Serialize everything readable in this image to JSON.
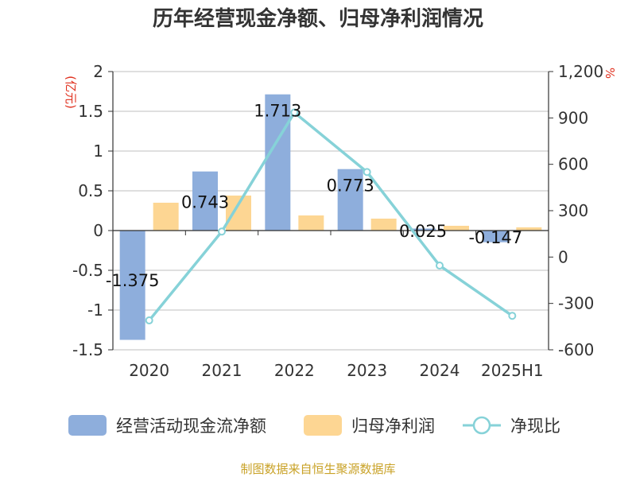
{
  "chart_data": {
    "type": "bar",
    "title": "历年经营现金净额、归母净利润情况",
    "categories": [
      "2020",
      "2021",
      "2022",
      "2023",
      "2024",
      "2025H1"
    ],
    "left_axis": {
      "unit": "(亿元)",
      "ylim": [
        -1.5,
        2
      ],
      "ticks": [
        2,
        1.5,
        1,
        0.5,
        0,
        -0.5,
        -1,
        -1.5
      ],
      "tick_labels": [
        "2",
        "1.5",
        "1",
        "0.5",
        "0",
        "-0.5",
        "-1",
        "-1.5"
      ]
    },
    "right_axis": {
      "unit": "%",
      "ylim": [
        -600,
        1200
      ],
      "ticks": [
        1200,
        900,
        600,
        300,
        0,
        -300,
        -600
      ],
      "tick_labels": [
        "1,200",
        "900",
        "600",
        "300",
        "0",
        "-300",
        "-600"
      ]
    },
    "series": [
      {
        "name": "经营活动现金流净额",
        "type": "bar",
        "axis": "left",
        "color": "#8eaedc",
        "values": [
          -1.375,
          0.743,
          1.713,
          0.773,
          0.025,
          -0.147
        ],
        "labels": [
          "-1.375",
          "0.743",
          "1.713",
          "0.773",
          "0.025",
          "-0.147"
        ]
      },
      {
        "name": "归母净利润",
        "type": "bar",
        "axis": "left",
        "color": "#fdd693",
        "values": [
          0.35,
          0.44,
          0.19,
          0.15,
          0.06,
          0.04
        ]
      },
      {
        "name": "净现比",
        "type": "line",
        "axis": "right",
        "color": "#86d2d8",
        "values": [
          -410,
          165,
          935,
          550,
          -55,
          -380
        ]
      }
    ],
    "grid": true,
    "legend_position": "bottom"
  },
  "source_text": "制图数据来自恒生聚源数据库"
}
